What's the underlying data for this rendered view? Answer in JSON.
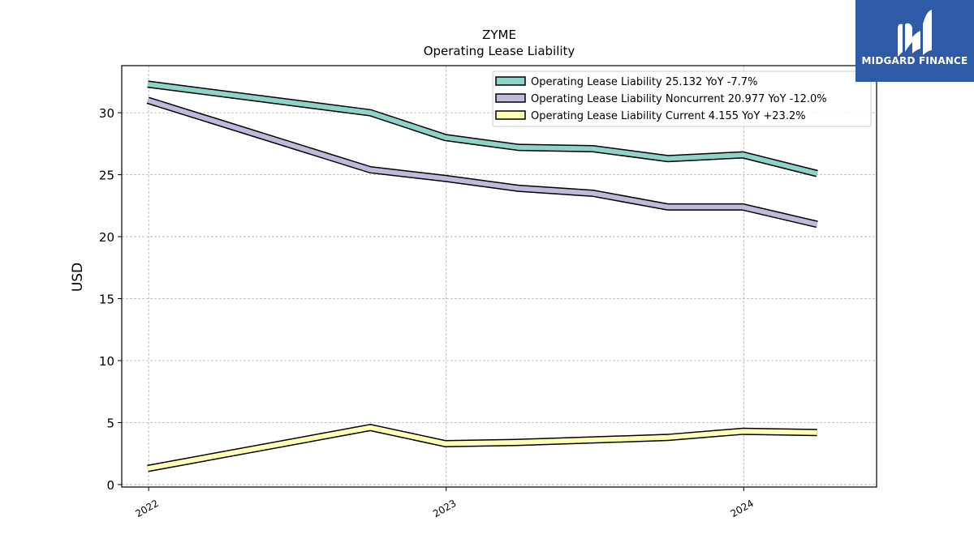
{
  "chart_data": {
    "type": "line",
    "title": "ZYME",
    "subtitle": "Operating Lease Liability",
    "ylabel": "USD",
    "xlabel": "",
    "ylim": [
      -0.2,
      33.8
    ],
    "xlim": [
      "2021-11-29",
      "2024-06-12"
    ],
    "yticks": [
      0,
      5,
      10,
      15,
      20,
      25,
      30
    ],
    "xticks": [
      {
        "label": "2022",
        "date": "2022-01-01"
      },
      {
        "label": "2023",
        "date": "2023-01-01"
      },
      {
        "label": "2024",
        "date": "2024-01-01"
      }
    ],
    "grid": true,
    "legend_position": "top-right",
    "x": [
      "2021-12-31",
      "2022-09-30",
      "2022-12-31",
      "2023-03-31",
      "2023-06-30",
      "2023-09-30",
      "2023-12-31",
      "2024-03-31"
    ],
    "series": [
      {
        "name": "Operating Lease Liability  25.132 YoY -7.7%",
        "color": "#8dd3c7",
        "values": [
          32.3,
          30.0,
          28.0,
          27.2,
          27.1,
          26.3,
          26.6,
          25.1
        ]
      },
      {
        "name": "Operating Lease Liability Noncurrent  20.977 YoY -12.0%",
        "color": "#bebada",
        "values": [
          31.0,
          25.4,
          24.7,
          23.9,
          23.5,
          22.4,
          22.4,
          21.0
        ]
      },
      {
        "name": "Operating Lease Liability Current  4.155 YoY +23.2%",
        "color": "#ffffb3",
        "values": [
          1.3,
          4.6,
          3.3,
          3.4,
          3.6,
          3.8,
          4.3,
          4.2
        ]
      }
    ]
  },
  "logo": {
    "text": "MIDGARD FINANCE",
    "color": "#2f5aa8"
  }
}
